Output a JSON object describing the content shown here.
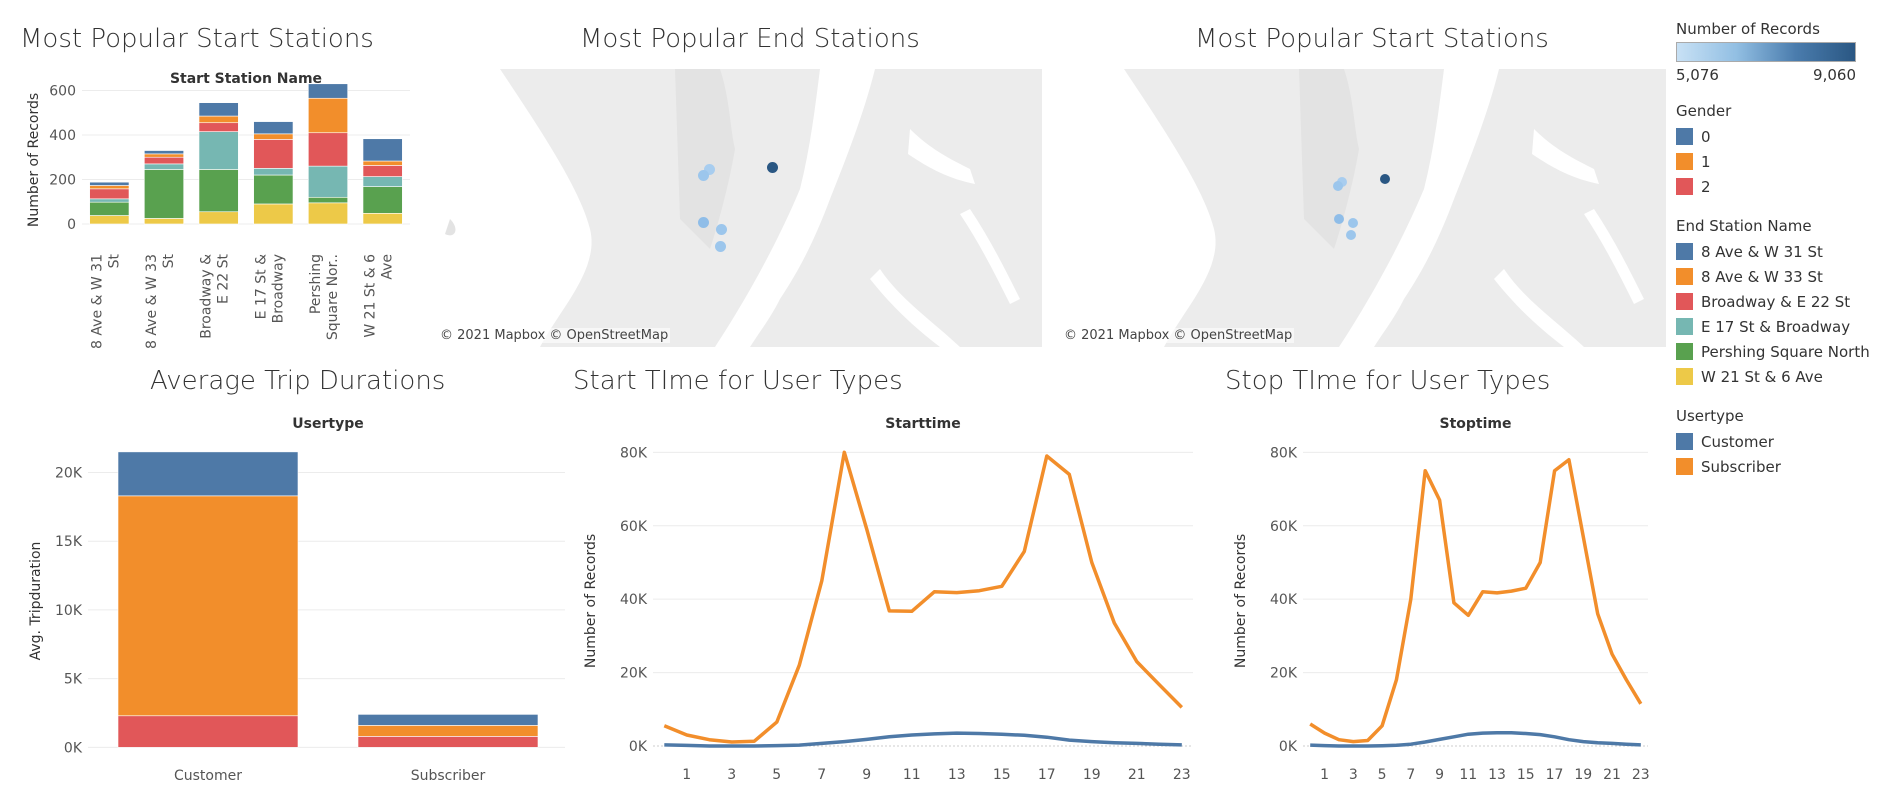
{
  "titles": {
    "start_bars": "Most Popular Start Stations",
    "end_map": "Most Popular End Stations",
    "start_map": "Most Popular Start Stations",
    "trip_dur": "Average Trip Durations",
    "start_time": "Start TIme for User Types",
    "stop_time": "Stop TIme for User Types"
  },
  "maps": {
    "credit": "© 2021 Mapbox © OpenStreetMap"
  },
  "legend": {
    "records": {
      "title": "Number of Records",
      "min": "5,076",
      "max": "9,060"
    },
    "gender": {
      "title": "Gender",
      "items": [
        {
          "label": "0",
          "color": "#4e79a7"
        },
        {
          "label": "1",
          "color": "#f28e2b"
        },
        {
          "label": "2",
          "color": "#e15759"
        }
      ]
    },
    "end_station": {
      "title": "End Station Name",
      "items": [
        {
          "label": "8 Ave & W 31 St",
          "color": "#4e79a7"
        },
        {
          "label": "8 Ave & W 33 St",
          "color": "#f28e2b"
        },
        {
          "label": "Broadway & E 22 St",
          "color": "#e15759"
        },
        {
          "label": "E 17 St & Broadway",
          "color": "#76b7b2"
        },
        {
          "label": "Pershing Square North",
          "color": "#59a14f"
        },
        {
          "label": "W 21 St & 6 Ave",
          "color": "#edc948"
        }
      ]
    },
    "usertype": {
      "title": "Usertype",
      "items": [
        {
          "label": "Customer",
          "color": "#4e79a7"
        },
        {
          "label": "Subscriber",
          "color": "#f28e2b"
        }
      ]
    }
  },
  "chart_data": [
    {
      "id": "start-stations",
      "type": "bar",
      "stacked": true,
      "title": "Start Station Name",
      "ylabel": "Number of Records",
      "ylim": [
        -45,
        620
      ],
      "yticks": [
        0,
        200,
        400,
        600
      ],
      "categories": [
        [
          "8 Ave & W 31",
          "St"
        ],
        [
          "8 Ave & W 33",
          "St"
        ],
        [
          "Broadway &",
          "E 22 St"
        ],
        [
          "E 17 St &",
          "Broadway"
        ],
        [
          "Pershing",
          "Square Nor.."
        ],
        [
          "W 21 St & 6",
          "Ave"
        ]
      ],
      "series": [
        {
          "name": "W 21 St & 6 Ave",
          "color": "#edc948",
          "values": [
            38,
            25,
            55,
            90,
            95,
            48
          ]
        },
        {
          "name": "Pershing Square North",
          "color": "#59a14f",
          "values": [
            60,
            220,
            190,
            130,
            25,
            120
          ]
        },
        {
          "name": "E 17 St & Broadway",
          "color": "#76b7b2",
          "values": [
            15,
            25,
            170,
            30,
            140,
            45
          ]
        },
        {
          "name": "Broadway & E 22 St",
          "color": "#e15759",
          "values": [
            45,
            30,
            40,
            130,
            150,
            50
          ]
        },
        {
          "name": "8 Ave & W 33 St",
          "color": "#f28e2b",
          "values": [
            15,
            15,
            30,
            25,
            155,
            20
          ]
        },
        {
          "name": "8 Ave & W 31 St",
          "color": "#4e79a7",
          "values": [
            15,
            15,
            60,
            55,
            65,
            100
          ]
        }
      ]
    },
    {
      "id": "trip-durations",
      "type": "bar",
      "stacked": true,
      "title": "Usertype",
      "ylabel": "Avg. Tripduration",
      "ylim": [
        -700,
        22000
      ],
      "yticks": [
        0,
        5000,
        10000,
        15000,
        20000
      ],
      "ytick_labels": [
        "0K",
        "5K",
        "10K",
        "15K",
        "20K"
      ],
      "categories": [
        "Customer",
        "Subscriber"
      ],
      "series": [
        {
          "name": "2",
          "color": "#e15759",
          "values": [
            2300,
            800
          ]
        },
        {
          "name": "1",
          "color": "#f28e2b",
          "values": [
            16000,
            800
          ]
        },
        {
          "name": "0",
          "color": "#4e79a7",
          "values": [
            3200,
            800
          ]
        }
      ]
    },
    {
      "id": "start-time",
      "type": "line",
      "title": "Starttime",
      "ylabel": "Number of Records",
      "ylim": [
        -3000,
        82000
      ],
      "yticks": [
        0,
        20000,
        40000,
        60000,
        80000
      ],
      "ytick_labels": [
        "0K",
        "20K",
        "40K",
        "60K",
        "80K"
      ],
      "x": [
        0,
        1,
        2,
        3,
        4,
        5,
        6,
        7,
        8,
        9,
        10,
        11,
        12,
        13,
        14,
        15,
        16,
        17,
        18,
        19,
        20,
        21,
        22,
        23
      ],
      "xticks": [
        1,
        3,
        5,
        7,
        9,
        11,
        13,
        15,
        17,
        19,
        21,
        23
      ],
      "series": [
        {
          "name": "Subscriber",
          "color": "#f28e2b",
          "values": [
            5500,
            3000,
            1700,
            1100,
            1300,
            6500,
            22000,
            45000,
            80000,
            59000,
            36800,
            36700,
            42000,
            41800,
            42300,
            43500,
            53000,
            79000,
            74000,
            50000,
            33500,
            23000,
            16700,
            10500
          ]
        },
        {
          "name": "Customer",
          "color": "#4e79a7",
          "values": [
            300,
            150,
            0,
            0,
            0,
            100,
            250,
            700,
            1200,
            1800,
            2500,
            3000,
            3300,
            3500,
            3400,
            3200,
            2900,
            2400,
            1600,
            1200,
            900,
            700,
            500,
            300
          ]
        }
      ]
    },
    {
      "id": "stop-time",
      "type": "line",
      "title": "Stoptime",
      "ylabel": "Number of Records",
      "ylim": [
        -3000,
        82000
      ],
      "yticks": [
        0,
        20000,
        40000,
        60000,
        80000
      ],
      "ytick_labels": [
        "0K",
        "20K",
        "40K",
        "60K",
        "80K"
      ],
      "x": [
        0,
        1,
        2,
        3,
        4,
        5,
        6,
        7,
        8,
        9,
        10,
        11,
        12,
        13,
        14,
        15,
        16,
        17,
        18,
        19,
        20,
        21,
        22,
        23
      ],
      "xticks": [
        1,
        3,
        5,
        7,
        9,
        11,
        13,
        15,
        17,
        19,
        21,
        23
      ],
      "series": [
        {
          "name": "Subscriber",
          "color": "#f28e2b",
          "values": [
            6000,
            3500,
            1700,
            1200,
            1500,
            5500,
            18000,
            40000,
            75000,
            67000,
            39000,
            35600,
            42000,
            41700,
            42200,
            43000,
            50000,
            75000,
            78000,
            57000,
            36000,
            25000,
            18000,
            11500
          ]
        },
        {
          "name": "Customer",
          "color": "#4e79a7",
          "values": [
            250,
            100,
            0,
            0,
            0,
            50,
            200,
            500,
            1100,
            1800,
            2500,
            3200,
            3500,
            3600,
            3600,
            3400,
            3100,
            2500,
            1700,
            1200,
            900,
            700,
            500,
            300
          ]
        }
      ]
    }
  ]
}
